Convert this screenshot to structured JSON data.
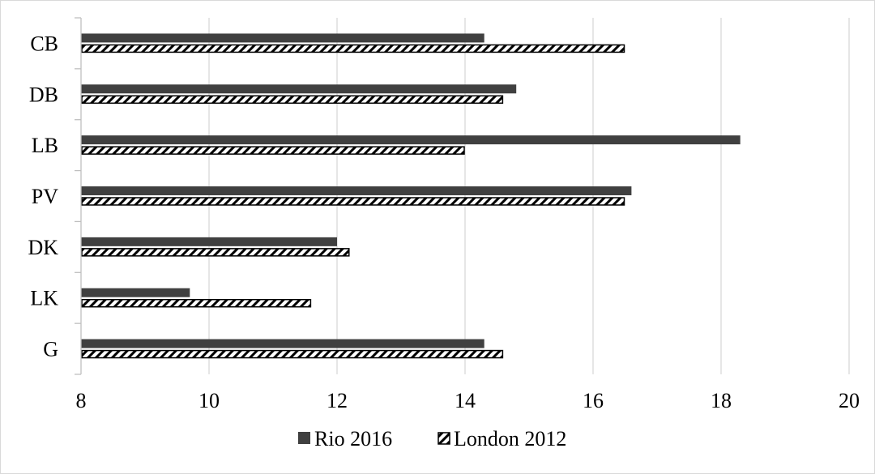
{
  "chart_data": {
    "type": "bar",
    "orientation": "horizontal",
    "categories": [
      "CB",
      "DB",
      "LB",
      "PV",
      "DK",
      "LK",
      "G"
    ],
    "series": [
      {
        "name": "Rio 2016",
        "values": [
          14.3,
          14.8,
          18.3,
          16.6,
          12.0,
          9.7,
          14.3
        ],
        "color": "#404040",
        "pattern": "solid"
      },
      {
        "name": "London 2012",
        "values": [
          16.5,
          14.6,
          14.0,
          16.5,
          12.2,
          11.6,
          14.6
        ],
        "color": "#000000",
        "pattern": "diagonal-hatch"
      }
    ],
    "xlim": [
      8,
      20
    ],
    "x_ticks": [
      "8",
      "10",
      "12",
      "14",
      "16",
      "18",
      "20"
    ],
    "grid": "vertical",
    "legend_position": "bottom",
    "title": "",
    "xlabel": "",
    "ylabel": ""
  },
  "colors": {
    "gridline": "#d9d9d9",
    "axis": "#bfbfbf",
    "border": "#d9d9d9"
  }
}
